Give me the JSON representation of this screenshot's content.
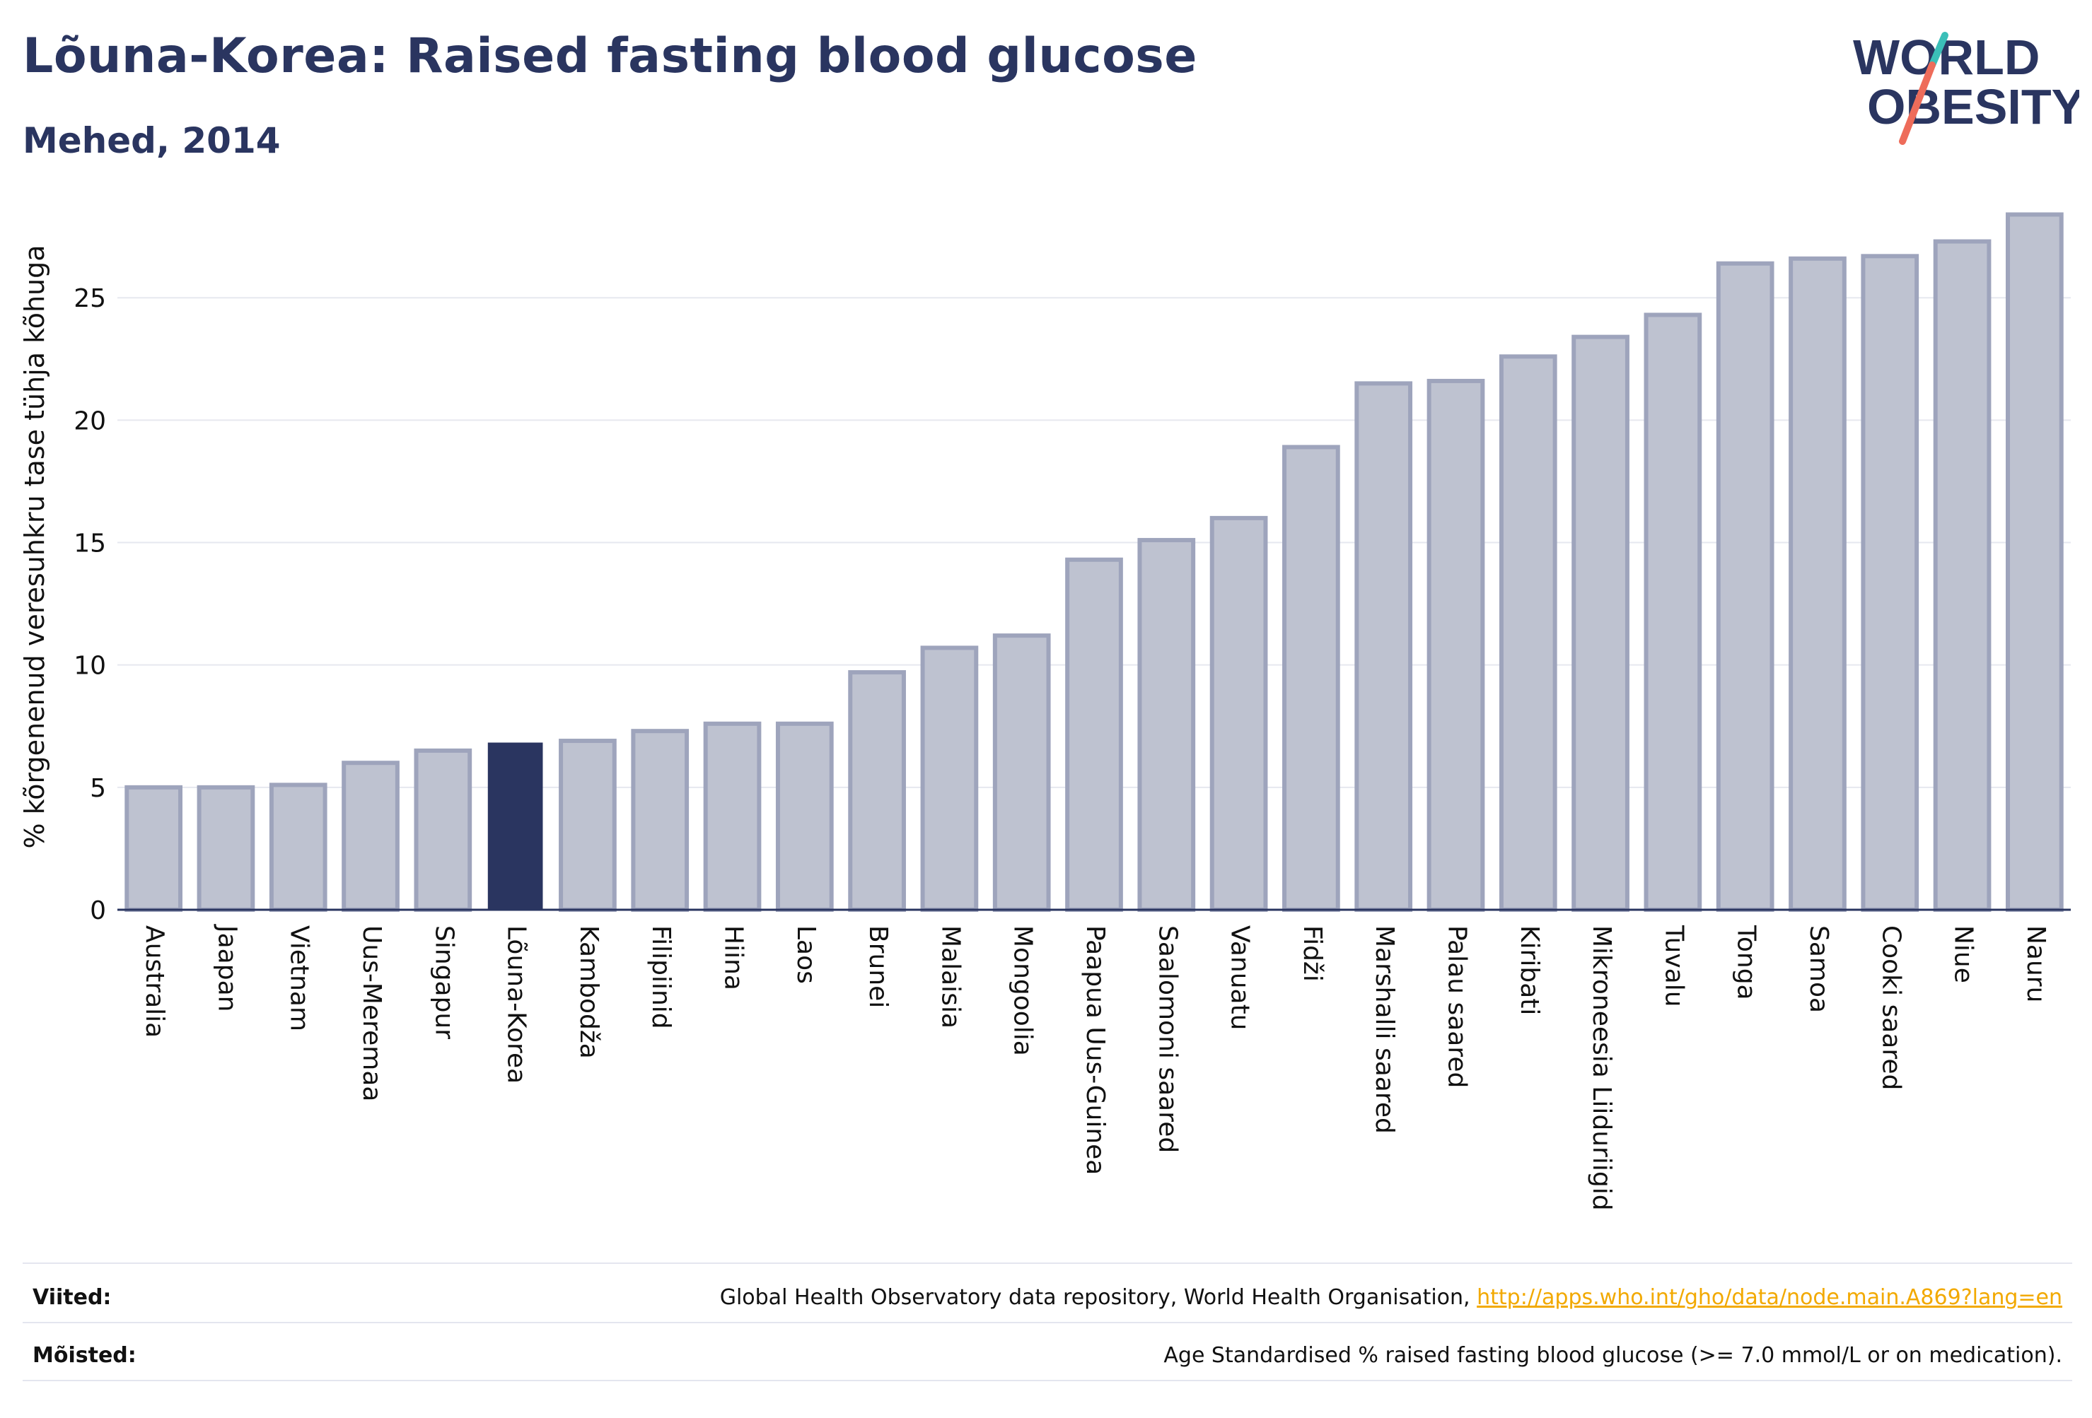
{
  "header": {
    "title": "Lõuna-Korea: Raised fasting blood glucose",
    "subtitle": "Mehed, 2014"
  },
  "logo": {
    "line1": "WORLD",
    "line2": "OBESITY",
    "colors": {
      "text": "#2a3560",
      "slash_teal": "#3bbfb8",
      "slash_coral": "#ee6c5a"
    }
  },
  "colors": {
    "bar_fill": "#bec2d0",
    "bar_stroke": "#9ea4bc",
    "highlight": "#2a3560",
    "grid": "#e6e8ef",
    "axis": "#2a3560"
  },
  "chart_data": {
    "type": "bar",
    "ylabel": "% kõrgenenud veresuhkru tase tühja kõhuga",
    "ylim": [
      0,
      28.5
    ],
    "yticks": [
      0,
      5,
      10,
      15,
      20,
      25
    ],
    "grid": true,
    "highlight": "Lõuna-Korea",
    "categories": [
      "Australia",
      "Jaapan",
      "Vietnam",
      "Uus-Meremaa",
      "Singapur",
      "Lõuna-Korea",
      "Kambodža",
      "Filipiinid",
      "Hiina",
      "Laos",
      "Brunei",
      "Malaisia",
      "Mongoolia",
      "Paapua Uus-Guinea",
      "Saalomoni saared",
      "Vanuatu",
      "Fidži",
      "Marshalli saared",
      "Palau saared",
      "Kiribati",
      "Mikroneesia Liiduriigid",
      "Tuvalu",
      "Tonga",
      "Samoa",
      "Cooki saared",
      "Niue",
      "Nauru"
    ],
    "values": [
      5.0,
      5.0,
      5.1,
      6.0,
      6.5,
      6.8,
      6.9,
      7.3,
      7.6,
      7.6,
      9.7,
      10.7,
      11.2,
      14.3,
      15.1,
      16.0,
      18.9,
      21.5,
      21.6,
      22.6,
      23.4,
      24.3,
      26.4,
      26.6,
      26.7,
      27.3,
      28.4
    ]
  },
  "footer": {
    "sources_label": "Viited:",
    "sources_text": "Global Health Observatory data repository, World Health Organisation,",
    "sources_link": "http://apps.who.int/gho/data/node.main.A869?lang=en",
    "definitions_label": "Mõisted:",
    "definitions_text": "Age Standardised % raised fasting blood glucose (>= 7.0 mmol/L or on medication)."
  }
}
